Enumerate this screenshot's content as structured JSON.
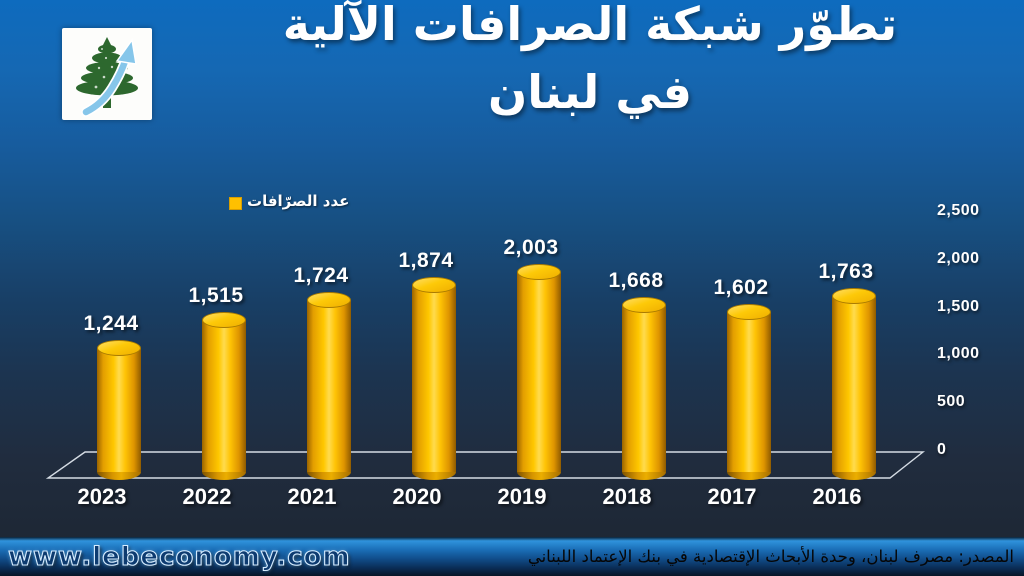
{
  "title": {
    "line1": "تطوّر شبكة الصرافات الآلية",
    "line2": "في لبنان",
    "color": "#FFFFFF"
  },
  "legend": {
    "label": "عدد الصرّافات",
    "marker_color": "#FFC000"
  },
  "chart_data": {
    "type": "bar",
    "title": "تطوّر شبكة الصرافات الآلية في لبنان",
    "series_name": "عدد الصرّافات",
    "categories": [
      "2023",
      "2022",
      "2021",
      "2020",
      "2019",
      "2018",
      "2017",
      "2016"
    ],
    "values": [
      1244,
      1515,
      1724,
      1874,
      2003,
      1668,
      1602,
      1763
    ],
    "value_labels": [
      "1,244",
      "1,515",
      "1,724",
      "1,874",
      "2,003",
      "1,668",
      "1,602",
      "1,763"
    ],
    "xlabel": "",
    "ylabel": "",
    "ylim": [
      0,
      2500
    ],
    "y_axis_side": "right",
    "y_ticks": [
      "2,500",
      "2,000",
      "1,500",
      "1,000",
      "500",
      "0"
    ],
    "grid": false,
    "legend_position": "top-left",
    "bar_color": "#FFC000",
    "bar_style": "3d-cylinder",
    "label_color": "#FFFFFF"
  },
  "footer": {
    "website": "www.lebeconomy.com",
    "source": "المصدر: مصرف لبنان، وحدة الأبحاث الإقتصادية في بنك الإعتماد اللبناني"
  },
  "icons": {
    "logo": "cedar-tree-with-growth-arrow",
    "legend_marker": "yellow-square"
  },
  "colors": {
    "background_top": "#0E6BBE",
    "background_bottom": "#1B2430",
    "footer_blue": "#1B6FB8",
    "floor_line": "#D5DCE4"
  }
}
